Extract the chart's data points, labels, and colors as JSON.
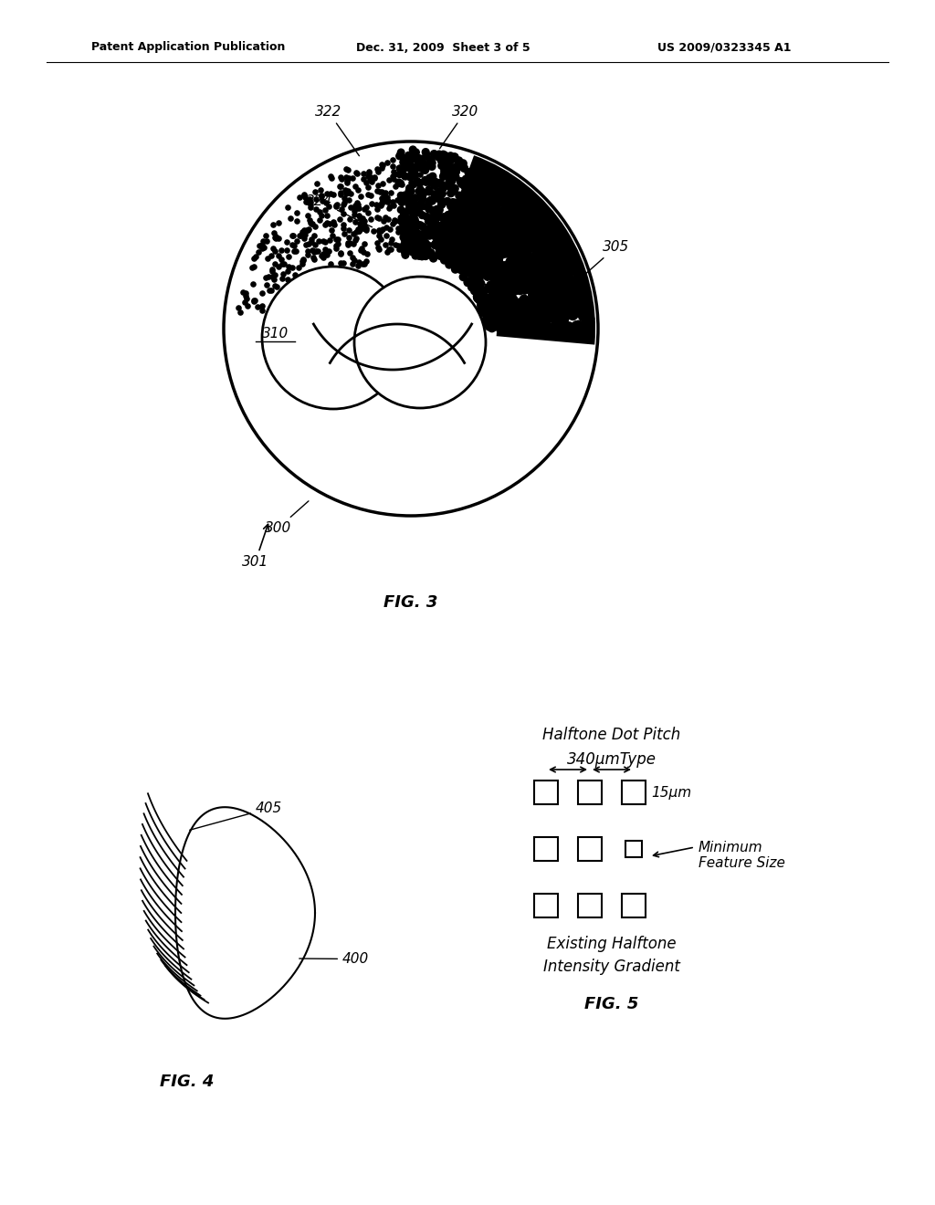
{
  "bg_color": "#ffffff",
  "header_text": "Patent Application Publication",
  "header_date": "Dec. 31, 2009  Sheet 3 of 5",
  "header_patent": "US 2009/0323345 A1",
  "fig3_title": "FIG. 3",
  "fig4_title": "FIG. 4",
  "fig5_title": "FIG. 5",
  "fig5_label1": "Halftone Dot Pitch",
  "fig5_label2": "340μmType",
  "fig5_label3": "15μm",
  "fig5_label4": "Minimum\nFeature Size",
  "fig5_label5": "Existing Halftone\nIntensity Gradient"
}
